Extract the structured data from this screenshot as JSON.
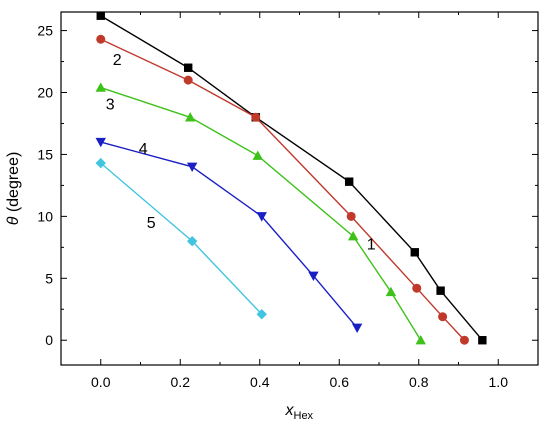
{
  "chart_data": {
    "type": "line",
    "xlabel_main": "x",
    "xlabel_sub": "Hex",
    "ylabel_symbol": "θ",
    "ylabel_text": " (degree)",
    "xlim": [
      -0.1,
      1.1
    ],
    "ylim": [
      -2,
      26.5
    ],
    "xticks": [
      0.0,
      0.2,
      0.4,
      0.6,
      0.8,
      1.0
    ],
    "xtick_labels": [
      "0.0",
      "0.2",
      "0.4",
      "0.6",
      "0.8",
      "1.0"
    ],
    "yticks": [
      0,
      5,
      10,
      15,
      20,
      25
    ],
    "ytick_labels": [
      "0",
      "5",
      "10",
      "15",
      "20",
      "25"
    ],
    "grid": false,
    "series": [
      {
        "name": "1",
        "marker": "square",
        "color": "#000000",
        "x": [
          0.0,
          0.22,
          0.39,
          0.625,
          0.79,
          0.855,
          0.96
        ],
        "y": [
          26.2,
          22.0,
          18.0,
          12.8,
          7.1,
          4.0,
          0.0
        ]
      },
      {
        "name": "2",
        "marker": "circle",
        "color": "#c0392b",
        "x": [
          0.0,
          0.22,
          0.39,
          0.63,
          0.795,
          0.86,
          0.915
        ],
        "y": [
          24.3,
          21.0,
          18.0,
          10.0,
          4.2,
          1.9,
          0.0
        ]
      },
      {
        "name": "3",
        "marker": "triangle-up",
        "color": "#3ec21a",
        "x": [
          0.0,
          0.225,
          0.395,
          0.635,
          0.73,
          0.805
        ],
        "y": [
          20.4,
          18.0,
          14.9,
          8.4,
          3.9,
          0.0
        ]
      },
      {
        "name": "4",
        "marker": "triangle-down",
        "color": "#1a1fc4",
        "x": [
          0.0,
          0.23,
          0.405,
          0.535,
          0.645
        ],
        "y": [
          16.0,
          14.0,
          10.0,
          5.2,
          1.0
        ]
      },
      {
        "name": "5",
        "marker": "diamond",
        "color": "#3fc5e0",
        "x": [
          0.0,
          0.23,
          0.405
        ],
        "y": [
          14.3,
          8.0,
          2.1
        ]
      }
    ]
  }
}
